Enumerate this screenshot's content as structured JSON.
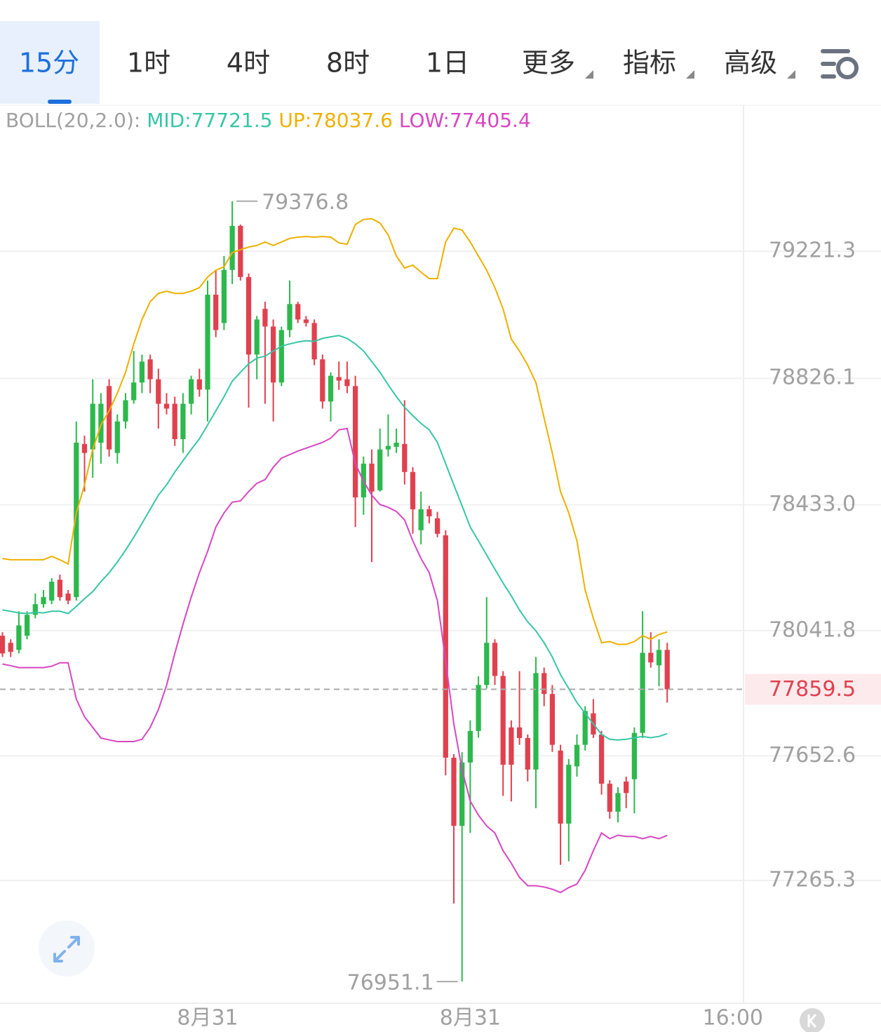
{
  "tabs": [
    "15分",
    "1时",
    "4时",
    "8时",
    "1日",
    "更多",
    "指标",
    "高级"
  ],
  "chart_data": {
    "type": "candlestick",
    "indicator": {
      "name": "BOLL(20,2.0):",
      "lines": [
        {
          "name": "MID:",
          "value": 77721.5,
          "color": "#36c6a6",
          "values": [
            78106,
            78102,
            78097,
            78095,
            78099,
            78097,
            78102,
            78102,
            78095,
            78117,
            78141,
            78163,
            78194,
            78222,
            78255,
            78292,
            78332,
            78375,
            78419,
            78463,
            78495,
            78535,
            78570,
            78605,
            78638,
            78681,
            78725,
            78769,
            78817,
            78845,
            78871,
            78889,
            78895,
            78911,
            78926,
            78933,
            78939,
            78943,
            78941,
            78950,
            78955,
            78959,
            78950,
            78933,
            78911,
            78878,
            78845,
            78806,
            78769,
            78736,
            78710,
            78686,
            78666,
            78627,
            78561,
            78495,
            78430,
            78364,
            78321,
            78277,
            78233,
            78190,
            78150,
            78106,
            78069,
            78041,
            78004,
            77960,
            77905,
            77862,
            77818,
            77785,
            77752,
            77719,
            77704,
            77702,
            77704,
            77709,
            77713,
            77709,
            77713,
            77721.5
          ]
        },
        {
          "name": "UP:",
          "value": 78037.6,
          "color": "#eeb000",
          "values": [
            78266,
            78262,
            78262,
            78262,
            78262,
            78262,
            78273,
            78262,
            78249,
            78408,
            78495,
            78605,
            78681,
            78725,
            78780,
            78845,
            78933,
            79009,
            79064,
            79090,
            79097,
            79090,
            79090,
            79097,
            79108,
            79141,
            79162,
            79173,
            79217,
            79226,
            79234,
            79239,
            79250,
            79239,
            79250,
            79261,
            79265,
            79267,
            79265,
            79267,
            79265,
            79247,
            79243,
            79304,
            79320,
            79322,
            79309,
            79272,
            79206,
            79169,
            79178,
            79156,
            79136,
            79136,
            79250,
            79293,
            79287,
            79250,
            79206,
            79162,
            79108,
            79042,
            78948,
            78911,
            78867,
            78813,
            78703,
            78594,
            78474,
            78408,
            78321,
            78168,
            78080,
            78004,
            78008,
            77999,
            77999,
            78008,
            78026,
            78015,
            78030,
            78037.6
          ]
        },
        {
          "name": "LOW:",
          "value": 77405.4,
          "color": "#d846c2",
          "values": [
            77938,
            77933,
            77927,
            77927,
            77927,
            77927,
            77931,
            77942,
            77942,
            77829,
            77774,
            77741,
            77708,
            77702,
            77697,
            77697,
            77697,
            77704,
            77741,
            77796,
            77872,
            77971,
            78062,
            78146,
            78222,
            78288,
            78364,
            78408,
            78441,
            78445,
            78474,
            78500,
            78511,
            78550,
            78578,
            78589,
            78600,
            78609,
            78618,
            78627,
            78640,
            78666,
            78670,
            78561,
            78506,
            78463,
            78434,
            78425,
            78412,
            78386,
            78321,
            78266,
            78222,
            78135,
            77949,
            77752,
            77610,
            77512,
            77468,
            77435,
            77413,
            77358,
            77319,
            77275,
            77249,
            77249,
            77245,
            77238,
            77228,
            77243,
            77254,
            77297,
            77358,
            77413,
            77395,
            77406,
            77402,
            77402,
            77395,
            77402,
            77395,
            77405.4
          ]
        }
      ]
    },
    "open": [
      78026,
      78004,
      77982,
      78026,
      78091,
      78124,
      78135,
      78200,
      78157,
      78146,
      78622,
      78605,
      78626,
      78802,
      78594,
      78692,
      78758,
      78813,
      78885,
      78823,
      78747,
      78747,
      78637,
      78747,
      78823,
      78791,
      79086,
      78998,
      79163,
      79300,
      79141,
      78900,
      79042,
      78987,
      78813,
      78976,
      79057,
      79009,
      78998,
      78885,
      78754,
      78830,
      78823,
      78802,
      78456,
      78561,
      78478,
      78605,
      78613,
      78622,
      78535,
      78354,
      78419,
      78391,
      78338,
      77647,
      77435,
      77632,
      77730,
      77873,
      78004,
      77901,
      77741,
      77741,
      77708,
      77610,
      77910,
      77845,
      77669,
      77442,
      77620,
      77687,
      77785,
      77719,
      77566,
      77479,
      77573,
      77580,
      77724,
      77973,
      77934,
      77982
    ],
    "high": [
      78037,
      78015,
      78102,
      78102,
      78157,
      78168,
      78205,
      78216,
      78168,
      78692,
      78648,
      78823,
      78780,
      78823,
      78714,
      78780,
      78911,
      78900,
      78900,
      78856,
      78780,
      78769,
      78780,
      78834,
      78856,
      79130,
      79163,
      79206,
      79376.8,
      79304,
      79152,
      79020,
      79064,
      79009,
      78987,
      79130,
      79064,
      79020,
      79009,
      78900,
      78845,
      78878,
      78878,
      78834,
      78583,
      78605,
      78670,
      78714,
      78670,
      78758,
      78550,
      78474,
      78430,
      78411,
      78354,
      77658,
      77664,
      77763,
      77900,
      78146,
      78015,
      77916,
      77763,
      77916,
      77719,
      77960,
      77927,
      77873,
      77687,
      77643,
      77719,
      77807,
      77829,
      77730,
      77577,
      77555,
      77588,
      77741,
      78102,
      78037,
      78015,
      78004
    ],
    "low": [
      77960,
      77960,
      77971,
      78015,
      78080,
      78113,
      78124,
      78135,
      78124,
      78135,
      78474,
      78517,
      78561,
      78583,
      78561,
      78670,
      78747,
      78780,
      78780,
      78670,
      78714,
      78616,
      78594,
      78714,
      78769,
      78692,
      78954,
      78976,
      79119,
      79130,
      78735,
      78823,
      78747,
      78692,
      78802,
      78954,
      78998,
      78987,
      78867,
      78732,
      78692,
      78790,
      78780,
      78364,
      78402,
      78255,
      78474,
      78583,
      78594,
      78496,
      78343,
      78310,
      78375,
      78332,
      77592,
      77194,
      76951.1,
      77413,
      77709,
      77862,
      77873,
      77528,
      77511,
      77687,
      77573,
      77490,
      77807,
      77665,
      77314,
      77325,
      77588,
      77669,
      77708,
      77532,
      77457,
      77446,
      77490,
      77474,
      77708,
      77927,
      77869,
      77818
    ],
    "close": [
      77971,
      77976,
      78058,
      78091,
      78124,
      78146,
      78194,
      78146,
      78135,
      78626,
      78594,
      78747,
      78747,
      78605,
      78692,
      78758,
      78813,
      78878,
      78823,
      78747,
      78732,
      78637,
      78747,
      78823,
      78791,
      79086,
      78976,
      79163,
      79300,
      79141,
      78900,
      79009,
      78987,
      78813,
      78976,
      79057,
      79009,
      78998,
      78885,
      78754,
      78834,
      78819,
      78802,
      78456,
      78561,
      78474,
      78605,
      78616,
      78626,
      78535,
      78419,
      78419,
      78397,
      78343,
      77647,
      77435,
      77632,
      77730,
      77873,
      78004,
      77901,
      77625,
      77625,
      77708,
      77610,
      77910,
      77845,
      77687,
      77442,
      77625,
      77687,
      77792,
      77719,
      77566,
      77479,
      77537,
      77537,
      77724,
      77973,
      77943,
      77982,
      77859.5
    ],
    "up_color": "#2db84d",
    "down_color": "#e0414f",
    "high_label": 79376.8,
    "low_label": 76951.1,
    "last_price": 77859.5,
    "xlim": [
      -0.3,
      90.3
    ],
    "xticks": [
      {
        "value": 25,
        "label": "8月31"
      },
      {
        "value": 57,
        "label": "8月31"
      },
      {
        "value": 89,
        "label": "16:00"
      }
    ],
    "ylim": [
      76883.7,
      79674.9
    ],
    "yticks": [
      79221.3,
      78826.1,
      {
        "value": 78433,
        "label": "78433.0"
      },
      78041.8,
      77652.6,
      77265.3
    ],
    "grid": true
  }
}
